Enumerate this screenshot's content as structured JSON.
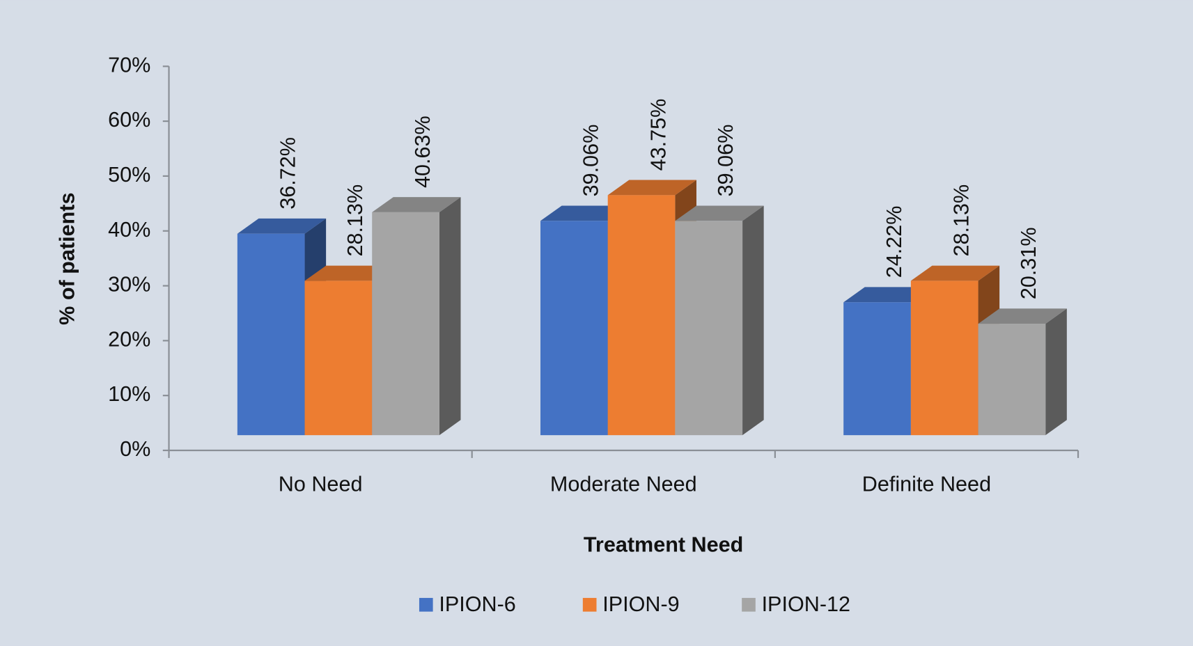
{
  "chart_data": {
    "type": "bar3d",
    "x_label": "Treatment Need",
    "y_label": "% of patients",
    "categories": [
      "No Need",
      "Moderate Need",
      "Definite Need"
    ],
    "series": [
      {
        "name": "IPION-6",
        "color": "#4472c4",
        "values": [
          36.72,
          39.06,
          24.22
        ],
        "value_labels": [
          "36.72%",
          "39.06%",
          "24.22%"
        ]
      },
      {
        "name": "IPION-9",
        "color": "#ed7d31",
        "values": [
          28.13,
          43.75,
          28.13
        ],
        "value_labels": [
          "28.13%",
          "43.75%",
          "28.13%"
        ]
      },
      {
        "name": "IPION-12",
        "color": "#a5a5a5",
        "values": [
          40.63,
          39.06,
          20.31
        ],
        "value_labels": [
          "40.63%",
          "39.06%",
          "20.31%"
        ]
      }
    ],
    "ylim": [
      0,
      70
    ],
    "yticks": [
      {
        "value": 0,
        "label": "0%"
      },
      {
        "value": 10,
        "label": "10%"
      },
      {
        "value": 20,
        "label": "20%"
      },
      {
        "value": 30,
        "label": "30%"
      },
      {
        "value": 40,
        "label": "40%"
      },
      {
        "value": 50,
        "label": "50%"
      },
      {
        "value": 60,
        "label": "60%"
      },
      {
        "value": 70,
        "label": "70%"
      }
    ],
    "legend": "bottom"
  }
}
